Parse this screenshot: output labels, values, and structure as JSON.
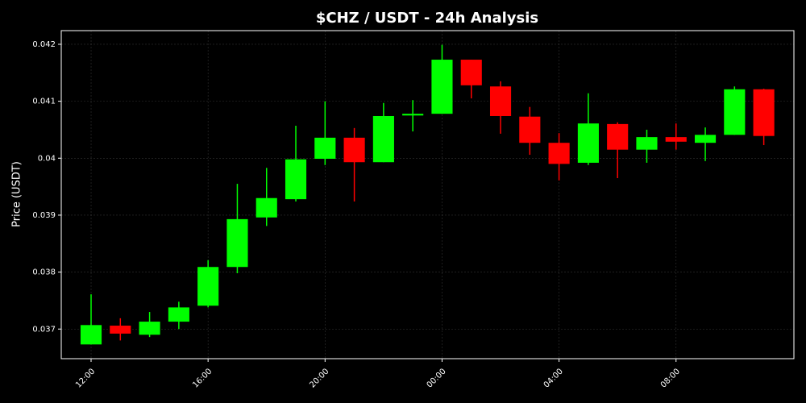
{
  "chart_data": {
    "type": "candlestick",
    "title": "$CHZ / USDT - 24h Analysis",
    "y_label": "Price (USDT)",
    "categories": [
      "12:00",
      null,
      null,
      null,
      "16:00",
      null,
      null,
      null,
      "20:00",
      null,
      null,
      null,
      "00:00",
      null,
      null,
      null,
      "04:00",
      null,
      null,
      null,
      "08:00",
      null,
      null,
      null
    ],
    "open": [
      0.03673,
      0.03706,
      0.0369,
      0.03713,
      0.03741,
      0.03809,
      0.03896,
      0.03928,
      0.03999,
      0.04036,
      0.03993,
      0.04075,
      0.04078,
      0.04173,
      0.04126,
      0.04073,
      0.04027,
      0.03992,
      0.0406,
      0.04015,
      0.04037,
      0.04027,
      0.04041,
      0.04121
    ],
    "high": [
      0.03761,
      0.03719,
      0.0373,
      0.03748,
      0.03821,
      0.03955,
      0.03983,
      0.04057,
      0.041,
      0.04053,
      0.04097,
      0.04102,
      0.04199,
      0.04173,
      0.04135,
      0.0409,
      0.04044,
      0.04114,
      0.04063,
      0.0405,
      0.04061,
      0.04054,
      0.04126,
      0.04122
    ],
    "low": [
      0.03673,
      0.0368,
      0.03686,
      0.037,
      0.03738,
      0.03798,
      0.03881,
      0.03924,
      0.03988,
      0.03924,
      0.03993,
      0.04047,
      0.04078,
      0.04105,
      0.04043,
      0.04006,
      0.03961,
      0.03988,
      0.03965,
      0.03992,
      0.04015,
      0.03995,
      0.04041,
      0.04023
    ],
    "close": [
      0.03707,
      0.03692,
      0.03713,
      0.03738,
      0.03809,
      0.03893,
      0.0393,
      0.03998,
      0.04036,
      0.03993,
      0.04074,
      0.04078,
      0.04173,
      0.04128,
      0.04074,
      0.04027,
      0.0399,
      0.04061,
      0.04015,
      0.04037,
      0.04029,
      0.04041,
      0.04121,
      0.04039
    ],
    "up_color": "#00ff00",
    "down_color": "#ff0000",
    "ylim": [
      0.03648,
      0.04224
    ],
    "yticks": [
      0.037,
      0.038,
      0.039,
      0.04,
      0.041,
      0.042
    ],
    "grid": true
  }
}
